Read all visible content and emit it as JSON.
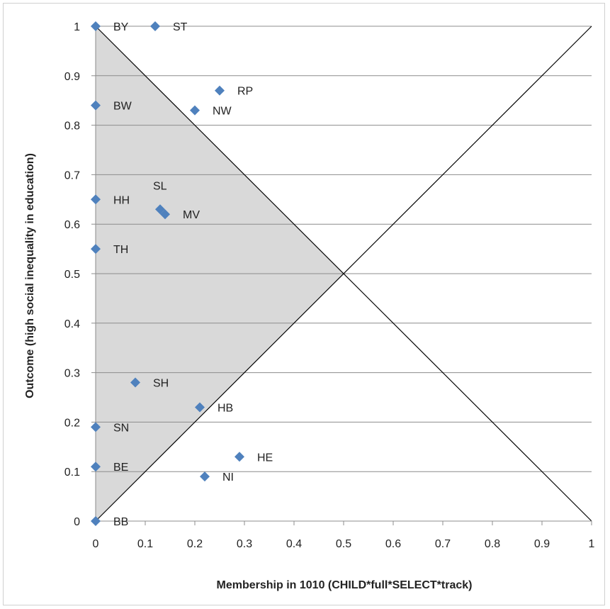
{
  "chart_data": {
    "type": "scatter",
    "title": "",
    "xlabel": "Membership in 1010 (CHILD*full*SELECT*track)",
    "ylabel": "Outcome (high social inequality in education)",
    "xlim": [
      0,
      1
    ],
    "ylim": [
      0,
      1
    ],
    "x_ticks": [
      "0",
      "0.1",
      "0.2",
      "0.3",
      "0.4",
      "0.5",
      "0.6",
      "0.7",
      "0.8",
      "0.9",
      "1"
    ],
    "y_ticks": [
      "0",
      "0.1",
      "0.2",
      "0.3",
      "0.4",
      "0.5",
      "0.6",
      "0.7",
      "0.8",
      "0.9",
      "1"
    ],
    "grid": "horizontal",
    "reference_lines": [
      "y = x",
      "y = 1 - x"
    ],
    "shaded_region": "triangle (0,0) – (0,1) – (0.5,0.5)",
    "marker_color": "#4f81bd",
    "shade_color": "#d9d9d9",
    "points": [
      {
        "label": "BY",
        "x": 0,
        "y": 1
      },
      {
        "label": "ST",
        "x": 0.12,
        "y": 1
      },
      {
        "label": "RP",
        "x": 0.25,
        "y": 0.87
      },
      {
        "label": "BW",
        "x": 0,
        "y": 0.84
      },
      {
        "label": "NW",
        "x": 0.2,
        "y": 0.83
      },
      {
        "label": "HH",
        "x": 0,
        "y": 0.65
      },
      {
        "label": "SL",
        "x": 0.13,
        "y": 0.63
      },
      {
        "label": "MV",
        "x": 0.14,
        "y": 0.62
      },
      {
        "label": "TH",
        "x": 0,
        "y": 0.55
      },
      {
        "label": "SH",
        "x": 0.08,
        "y": 0.28
      },
      {
        "label": "HB",
        "x": 0.21,
        "y": 0.23
      },
      {
        "label": "SN",
        "x": 0,
        "y": 0.19
      },
      {
        "label": "HE",
        "x": 0.29,
        "y": 0.13
      },
      {
        "label": "BE",
        "x": 0,
        "y": 0.11
      },
      {
        "label": "NI",
        "x": 0.22,
        "y": 0.09
      },
      {
        "label": "BB",
        "x": 0,
        "y": 0
      }
    ]
  }
}
